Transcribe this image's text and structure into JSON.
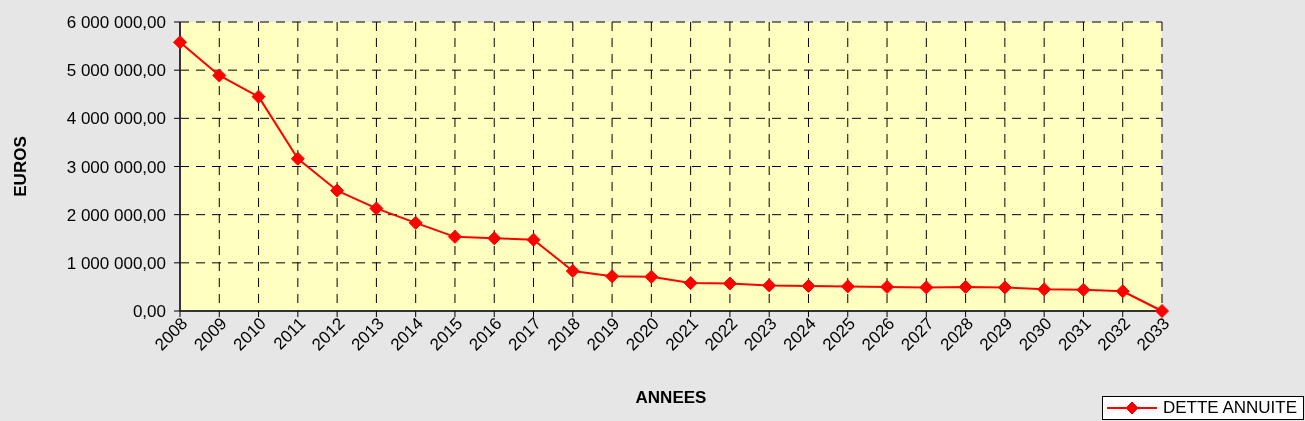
{
  "chart_data": {
    "type": "line",
    "xlabel": "ANNEES",
    "ylabel": "EUROS",
    "x": [
      2008,
      2009,
      2010,
      2011,
      2012,
      2013,
      2014,
      2015,
      2016,
      2017,
      2018,
      2019,
      2020,
      2021,
      2022,
      2023,
      2024,
      2025,
      2026,
      2027,
      2028,
      2029,
      2030,
      2031,
      2032,
      2033
    ],
    "series": [
      {
        "name": "DETTE ANNUITE",
        "color": "#ff0000",
        "values": [
          5580000,
          4890000,
          4450000,
          3160000,
          2500000,
          2130000,
          1830000,
          1540000,
          1510000,
          1480000,
          830000,
          720000,
          710000,
          580000,
          570000,
          530000,
          520000,
          510000,
          500000,
          490000,
          500000,
          490000,
          450000,
          440000,
          410000,
          0
        ]
      }
    ],
    "xlim": [
      2008,
      2033
    ],
    "xticks": [
      2008,
      2009,
      2010,
      2011,
      2012,
      2013,
      2014,
      2015,
      2016,
      2017,
      2018,
      2019,
      2020,
      2021,
      2022,
      2023,
      2024,
      2025,
      2026,
      2027,
      2028,
      2029,
      2030,
      2031,
      2032,
      2033
    ],
    "ylim": [
      0,
      6000000
    ],
    "yticks": [
      {
        "value": 0,
        "label": "0,00"
      },
      {
        "value": 1000000,
        "label": "1 000 000,00"
      },
      {
        "value": 2000000,
        "label": "2 000 000,00"
      },
      {
        "value": 3000000,
        "label": "3 000 000,00"
      },
      {
        "value": 4000000,
        "label": "4 000 000,00"
      },
      {
        "value": 5000000,
        "label": "5 000 000,00"
      },
      {
        "value": 6000000,
        "label": "6 000 000,00"
      }
    ],
    "grid": true,
    "legend": "bottom right",
    "marker": "diamond",
    "line_style": "solid"
  }
}
